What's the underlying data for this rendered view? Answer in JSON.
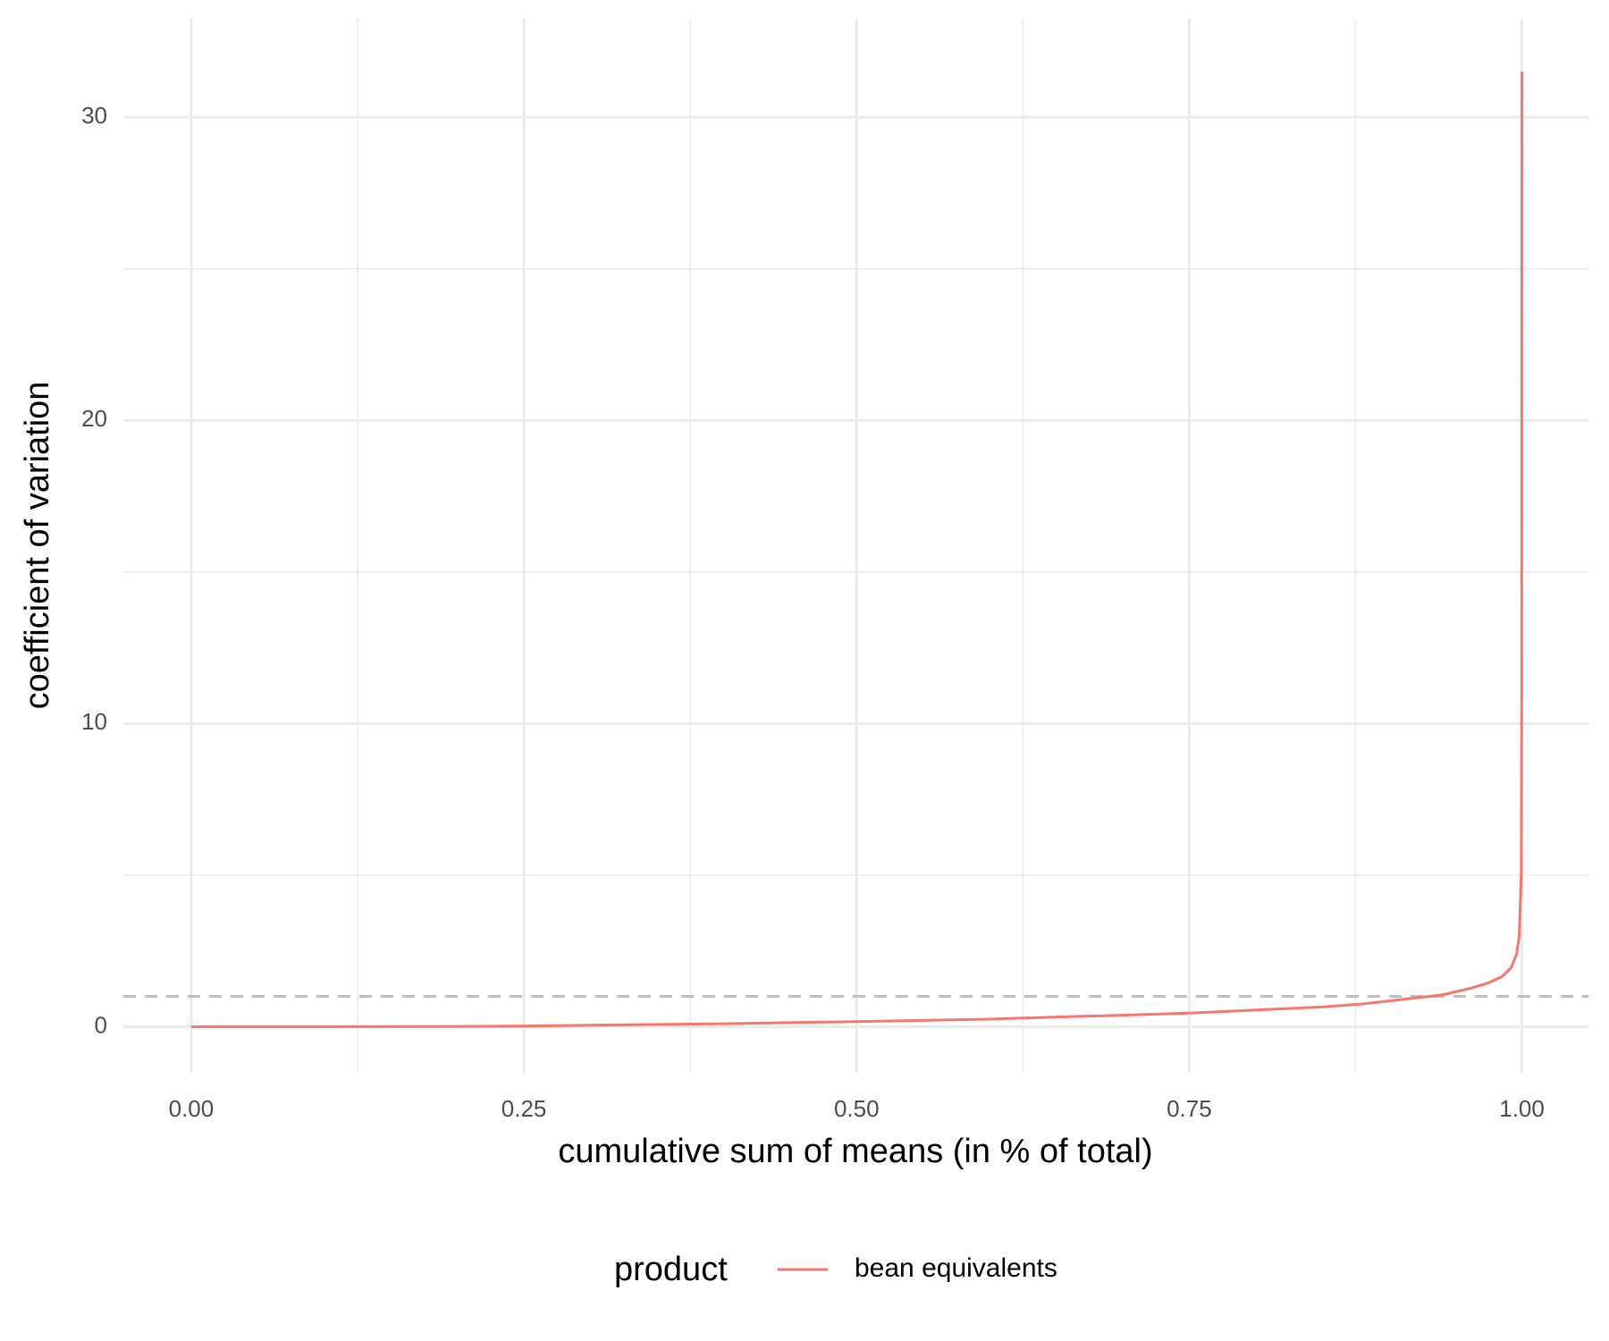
{
  "chart_data": {
    "type": "line",
    "x_label": "cumulative sum of means (in % of total)",
    "y_label": "coefficient of variation",
    "legend_title": "product",
    "legend_position": "bottom",
    "series": [
      {
        "name": "bean equivalents",
        "color": "#f8766d",
        "x": [
          0,
          0.1,
          0.2,
          0.25,
          0.3,
          0.4,
          0.5,
          0.6,
          0.65,
          0.7,
          0.75,
          0.8,
          0.85,
          0.88,
          0.9,
          0.92,
          0.94,
          0.96,
          0.975,
          0.985,
          0.992,
          0.996,
          0.998,
          0.9995,
          0.9998,
          0.9999,
          1.0
        ],
        "values": [
          0,
          0.003,
          0.01,
          0.02,
          0.05,
          0.1,
          0.17,
          0.25,
          0.32,
          0.38,
          0.45,
          0.55,
          0.65,
          0.75,
          0.85,
          0.95,
          1.05,
          1.25,
          1.45,
          1.65,
          1.95,
          2.4,
          3,
          5,
          10,
          20,
          31.5
        ]
      }
    ],
    "hline": {
      "value": 1,
      "color": "#bebebe",
      "dashed": true
    },
    "xlim": [
      -0.051,
      1.05
    ],
    "ylim": [
      -1.52,
      33.25
    ],
    "xticks": [
      {
        "value": 0,
        "label": "0.00"
      },
      {
        "value": 0.25,
        "label": "0.25"
      },
      {
        "value": 0.5,
        "label": "0.50"
      },
      {
        "value": 0.75,
        "label": "0.75"
      },
      {
        "value": 1,
        "label": "1.00"
      }
    ],
    "yticks": [
      0,
      10,
      20,
      30
    ],
    "x_minor_grid": [
      0.125,
      0.375,
      0.625,
      0.875
    ],
    "y_minor_grid": [
      5,
      15,
      25
    ],
    "grid": true
  }
}
